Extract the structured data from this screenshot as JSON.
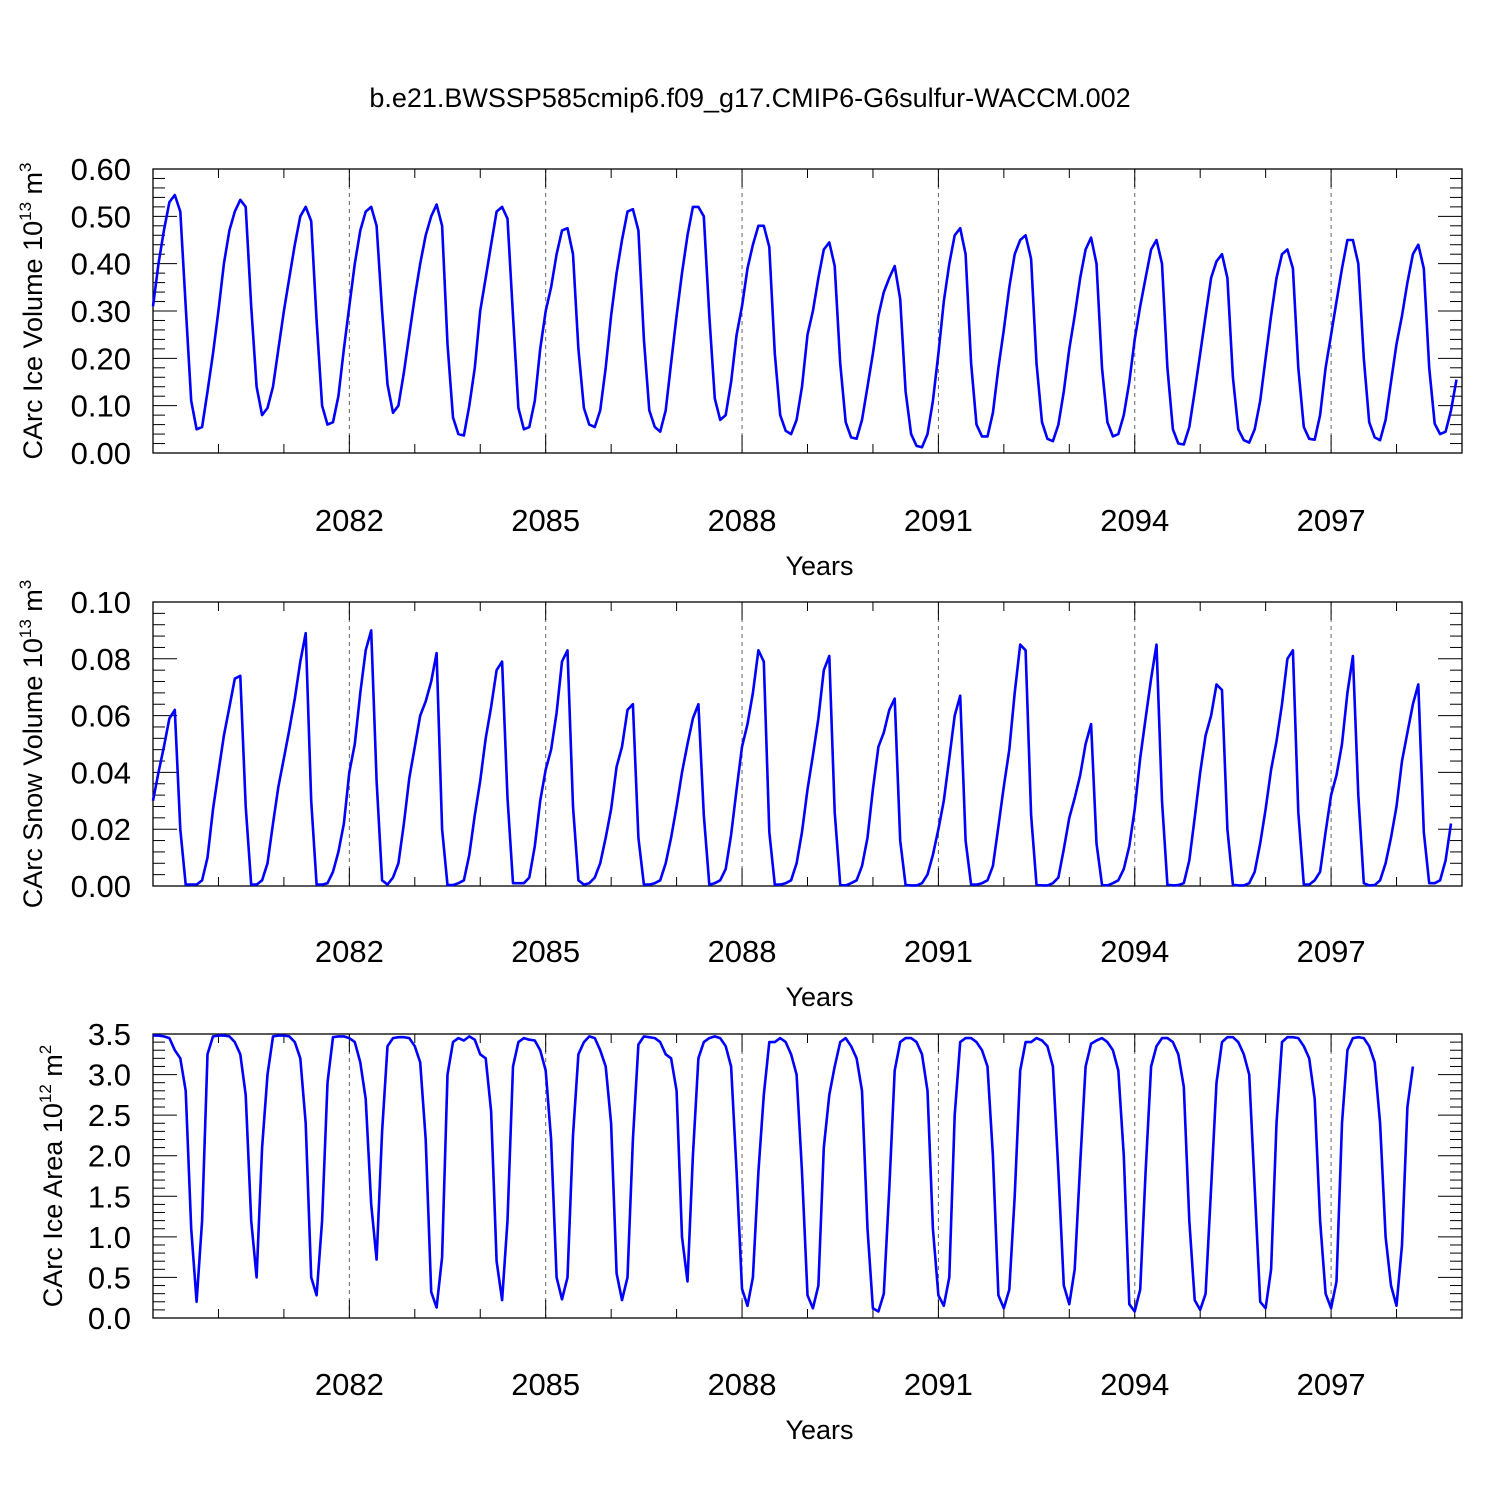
{
  "figure": {
    "title": "b.e21.BWSSP585cmip6.f09_g17.CMIP6-G6sulfur-WACCM.002",
    "line_color": "#0000ff"
  },
  "chart_data": [
    {
      "type": "line",
      "ylabel_main": "CArc Ice Volume 10",
      "ylabel_exp": "13",
      "ylabel_unit": " m",
      "ylabel_unit_exp": "3",
      "xlabel": "Years",
      "xlim": [
        2079.0,
        2099.0
      ],
      "ylim": [
        0.0,
        0.6
      ],
      "yticks": [
        0.0,
        0.1,
        0.2,
        0.3,
        0.4,
        0.5,
        0.6
      ],
      "ytick_labels": [
        "0.00",
        "0.10",
        "0.20",
        "0.30",
        "0.40",
        "0.50",
        "0.60"
      ],
      "xticks": [
        2082,
        2085,
        2088,
        2091,
        2094,
        2097
      ],
      "xtick_labels": [
        "2082",
        "2085",
        "2088",
        "2091",
        "2094",
        "2097"
      ],
      "vlines": [
        2082,
        2085,
        2088,
        2091,
        2094,
        2097
      ],
      "series": [
        {
          "x_start": 2079.0,
          "x_step": 0.08333,
          "values": [
            0.31,
            0.4,
            0.47,
            0.53,
            0.545,
            0.51,
            0.31,
            0.11,
            0.05,
            0.055,
            0.13,
            0.21,
            0.3,
            0.4,
            0.47,
            0.51,
            0.535,
            0.52,
            0.31,
            0.14,
            0.08,
            0.095,
            0.14,
            0.22,
            0.3,
            0.37,
            0.44,
            0.5,
            0.52,
            0.49,
            0.28,
            0.1,
            0.06,
            0.065,
            0.12,
            0.22,
            0.31,
            0.4,
            0.47,
            0.51,
            0.52,
            0.48,
            0.3,
            0.145,
            0.085,
            0.1,
            0.17,
            0.25,
            0.33,
            0.4,
            0.46,
            0.5,
            0.525,
            0.48,
            0.23,
            0.075,
            0.04,
            0.037,
            0.1,
            0.18,
            0.3,
            0.37,
            0.44,
            0.51,
            0.52,
            0.495,
            0.29,
            0.095,
            0.05,
            0.055,
            0.11,
            0.22,
            0.3,
            0.35,
            0.42,
            0.47,
            0.475,
            0.42,
            0.22,
            0.095,
            0.06,
            0.055,
            0.09,
            0.18,
            0.29,
            0.38,
            0.45,
            0.51,
            0.515,
            0.47,
            0.24,
            0.09,
            0.055,
            0.045,
            0.09,
            0.19,
            0.29,
            0.38,
            0.46,
            0.52,
            0.52,
            0.5,
            0.29,
            0.115,
            0.07,
            0.08,
            0.15,
            0.25,
            0.31,
            0.39,
            0.44,
            0.48,
            0.48,
            0.435,
            0.21,
            0.08,
            0.047,
            0.04,
            0.07,
            0.14,
            0.25,
            0.3,
            0.37,
            0.43,
            0.445,
            0.395,
            0.19,
            0.065,
            0.033,
            0.03,
            0.07,
            0.14,
            0.21,
            0.29,
            0.34,
            0.37,
            0.395,
            0.325,
            0.13,
            0.04,
            0.015,
            0.012,
            0.04,
            0.11,
            0.21,
            0.32,
            0.4,
            0.46,
            0.475,
            0.42,
            0.19,
            0.06,
            0.035,
            0.035,
            0.085,
            0.18,
            0.26,
            0.35,
            0.42,
            0.45,
            0.46,
            0.41,
            0.19,
            0.065,
            0.03,
            0.025,
            0.06,
            0.13,
            0.22,
            0.29,
            0.37,
            0.43,
            0.455,
            0.4,
            0.18,
            0.065,
            0.035,
            0.04,
            0.08,
            0.15,
            0.24,
            0.31,
            0.37,
            0.43,
            0.45,
            0.4,
            0.18,
            0.05,
            0.02,
            0.018,
            0.055,
            0.13,
            0.21,
            0.29,
            0.37,
            0.405,
            0.42,
            0.37,
            0.16,
            0.05,
            0.027,
            0.022,
            0.05,
            0.11,
            0.2,
            0.29,
            0.37,
            0.42,
            0.43,
            0.39,
            0.18,
            0.055,
            0.03,
            0.028,
            0.08,
            0.18,
            0.25,
            0.32,
            0.39,
            0.45,
            0.45,
            0.4,
            0.2,
            0.065,
            0.033,
            0.027,
            0.07,
            0.15,
            0.23,
            0.29,
            0.36,
            0.42,
            0.44,
            0.39,
            0.18,
            0.062,
            0.04,
            0.045,
            0.09,
            0.155
          ]
        }
      ]
    },
    {
      "type": "line",
      "ylabel_main": "CArc Snow Volume 10",
      "ylabel_exp": "13",
      "ylabel_unit": " m",
      "ylabel_unit_exp": "3",
      "xlabel": "Years",
      "xlim": [
        2079.0,
        2099.0
      ],
      "ylim": [
        0.0,
        0.1
      ],
      "yticks": [
        0.0,
        0.02,
        0.04,
        0.06,
        0.08,
        0.1
      ],
      "ytick_labels": [
        "0.00",
        "0.02",
        "0.04",
        "0.06",
        "0.08",
        "0.10"
      ],
      "xticks": [
        2082,
        2085,
        2088,
        2091,
        2094,
        2097
      ],
      "xtick_labels": [
        "2082",
        "2085",
        "2088",
        "2091",
        "2094",
        "2097"
      ],
      "vlines": [
        2082,
        2085,
        2088,
        2091,
        2094,
        2097
      ],
      "series": [
        {
          "x_start": 2079.0,
          "x_step": 0.08333,
          "values": [
            0.03,
            0.04,
            0.049,
            0.059,
            0.062,
            0.02,
            0.0005,
            0.0005,
            0.0005,
            0.002,
            0.01,
            0.027,
            0.04,
            0.053,
            0.063,
            0.073,
            0.074,
            0.028,
            0.0005,
            0.0005,
            0.002,
            0.008,
            0.022,
            0.035,
            0.045,
            0.055,
            0.066,
            0.079,
            0.089,
            0.03,
            0.0005,
            0.0005,
            0.001,
            0.005,
            0.012,
            0.022,
            0.04,
            0.05,
            0.068,
            0.083,
            0.09,
            0.037,
            0.002,
            0.0005,
            0.003,
            0.008,
            0.022,
            0.038,
            0.049,
            0.06,
            0.065,
            0.072,
            0.082,
            0.02,
            0.0003,
            0.0003,
            0.001,
            0.002,
            0.011,
            0.025,
            0.037,
            0.052,
            0.063,
            0.076,
            0.079,
            0.031,
            0.001,
            0.001,
            0.001,
            0.003,
            0.014,
            0.03,
            0.041,
            0.048,
            0.061,
            0.079,
            0.083,
            0.028,
            0.002,
            0.0005,
            0.001,
            0.003,
            0.008,
            0.017,
            0.027,
            0.042,
            0.049,
            0.062,
            0.064,
            0.017,
            0.0005,
            0.0005,
            0.001,
            0.002,
            0.008,
            0.017,
            0.028,
            0.04,
            0.05,
            0.059,
            0.064,
            0.025,
            0.0005,
            0.001,
            0.002,
            0.006,
            0.018,
            0.034,
            0.049,
            0.057,
            0.068,
            0.083,
            0.079,
            0.019,
            0.0005,
            0.0005,
            0.001,
            0.002,
            0.008,
            0.019,
            0.034,
            0.046,
            0.059,
            0.076,
            0.081,
            0.026,
            0.0005,
            0.0002,
            0.001,
            0.002,
            0.007,
            0.017,
            0.034,
            0.049,
            0.054,
            0.062,
            0.066,
            0.016,
            0.0003,
            0.0002,
            0.0002,
            0.001,
            0.004,
            0.011,
            0.02,
            0.03,
            0.045,
            0.06,
            0.067,
            0.016,
            0.0005,
            0.0005,
            0.001,
            0.002,
            0.007,
            0.021,
            0.035,
            0.048,
            0.068,
            0.085,
            0.083,
            0.025,
            0.0005,
            0.0002,
            0.0002,
            0.001,
            0.003,
            0.013,
            0.024,
            0.031,
            0.039,
            0.05,
            0.057,
            0.015,
            0.0005,
            0.0002,
            0.001,
            0.002,
            0.006,
            0.014,
            0.027,
            0.045,
            0.059,
            0.073,
            0.085,
            0.03,
            0.0005,
            0.0002,
            0.0003,
            0.001,
            0.009,
            0.024,
            0.04,
            0.053,
            0.06,
            0.071,
            0.069,
            0.02,
            0.0005,
            0.0002,
            0.0002,
            0.001,
            0.005,
            0.015,
            0.027,
            0.041,
            0.051,
            0.064,
            0.08,
            0.083,
            0.026,
            0.0005,
            0.0005,
            0.002,
            0.005,
            0.019,
            0.032,
            0.039,
            0.05,
            0.068,
            0.081,
            0.032,
            0.001,
            0.0002,
            0.0003,
            0.002,
            0.008,
            0.017,
            0.028,
            0.044,
            0.054,
            0.064,
            0.071,
            0.019,
            0.001,
            0.001,
            0.002,
            0.009,
            0.022
          ]
        }
      ]
    },
    {
      "type": "line",
      "ylabel_main": "CArc Ice Area 10",
      "ylabel_exp": "12",
      "ylabel_unit": " m",
      "ylabel_unit_exp": "2",
      "xlabel": "Years",
      "xlim": [
        2079.0,
        2099.0
      ],
      "ylim": [
        0.0,
        3.5
      ],
      "yticks": [
        0.0,
        0.5,
        1.0,
        1.5,
        2.0,
        2.5,
        3.0,
        3.5
      ],
      "ytick_labels": [
        "0.0",
        "0.5",
        "1.0",
        "1.5",
        "2.0",
        "2.5",
        "3.0",
        "3.5"
      ],
      "xticks": [
        2082,
        2085,
        2088,
        2091,
        2094,
        2097
      ],
      "xtick_labels": [
        "2082",
        "2085",
        "2088",
        "2091",
        "2094",
        "2097"
      ],
      "vlines": [
        2082,
        2085,
        2088,
        2091,
        2094,
        2097
      ],
      "series": [
        {
          "x_start": 2079.0,
          "x_step": 0.08333,
          "values": [
            3.48,
            3.48,
            3.47,
            3.45,
            3.3,
            3.2,
            2.8,
            1.1,
            0.2,
            1.2,
            3.25,
            3.47,
            3.48,
            3.48,
            3.47,
            3.4,
            3.25,
            2.75,
            1.2,
            0.5,
            2.1,
            3.0,
            3.47,
            3.48,
            3.48,
            3.47,
            3.4,
            3.2,
            2.4,
            0.5,
            0.28,
            1.2,
            2.9,
            3.46,
            3.47,
            3.47,
            3.45,
            3.4,
            3.15,
            2.7,
            1.4,
            0.72,
            2.3,
            3.35,
            3.45,
            3.46,
            3.46,
            3.45,
            3.35,
            3.15,
            2.2,
            0.32,
            0.13,
            0.75,
            3.0,
            3.4,
            3.45,
            3.42,
            3.47,
            3.43,
            3.25,
            3.2,
            2.55,
            0.7,
            0.22,
            1.2,
            3.1,
            3.4,
            3.45,
            3.43,
            3.42,
            3.3,
            3.05,
            2.2,
            0.5,
            0.23,
            0.5,
            2.25,
            3.25,
            3.4,
            3.47,
            3.45,
            3.3,
            3.1,
            2.4,
            0.55,
            0.22,
            0.5,
            2.2,
            3.37,
            3.47,
            3.46,
            3.45,
            3.4,
            3.25,
            3.2,
            2.8,
            1.0,
            0.45,
            2.0,
            3.2,
            3.4,
            3.45,
            3.47,
            3.45,
            3.35,
            3.1,
            1.8,
            0.36,
            0.15,
            0.5,
            1.8,
            2.75,
            3.4,
            3.4,
            3.45,
            3.4,
            3.25,
            3.0,
            1.8,
            0.28,
            0.12,
            0.4,
            2.1,
            2.75,
            3.1,
            3.4,
            3.45,
            3.35,
            3.2,
            2.8,
            1.1,
            0.12,
            0.08,
            0.3,
            1.6,
            3.05,
            3.4,
            3.45,
            3.45,
            3.4,
            3.25,
            2.8,
            1.1,
            0.28,
            0.15,
            0.5,
            2.5,
            3.4,
            3.45,
            3.45,
            3.4,
            3.3,
            3.1,
            2.0,
            0.28,
            0.12,
            0.35,
            1.5,
            3.05,
            3.4,
            3.4,
            3.45,
            3.42,
            3.35,
            3.1,
            1.8,
            0.4,
            0.17,
            0.6,
            1.9,
            3.1,
            3.38,
            3.42,
            3.45,
            3.4,
            3.3,
            3.05,
            2.0,
            0.17,
            0.08,
            0.35,
            1.8,
            3.1,
            3.35,
            3.45,
            3.45,
            3.4,
            3.25,
            2.85,
            1.2,
            0.22,
            0.1,
            0.3,
            1.6,
            2.9,
            3.4,
            3.46,
            3.46,
            3.4,
            3.25,
            3.0,
            1.6,
            0.2,
            0.12,
            0.6,
            2.4,
            3.4,
            3.46,
            3.46,
            3.45,
            3.35,
            3.2,
            2.7,
            1.2,
            0.3,
            0.12,
            0.45,
            2.4,
            3.3,
            3.45,
            3.46,
            3.45,
            3.35,
            3.15,
            2.4,
            1.0,
            0.4,
            0.15,
            0.9,
            2.6,
            3.1
          ]
        }
      ]
    }
  ]
}
